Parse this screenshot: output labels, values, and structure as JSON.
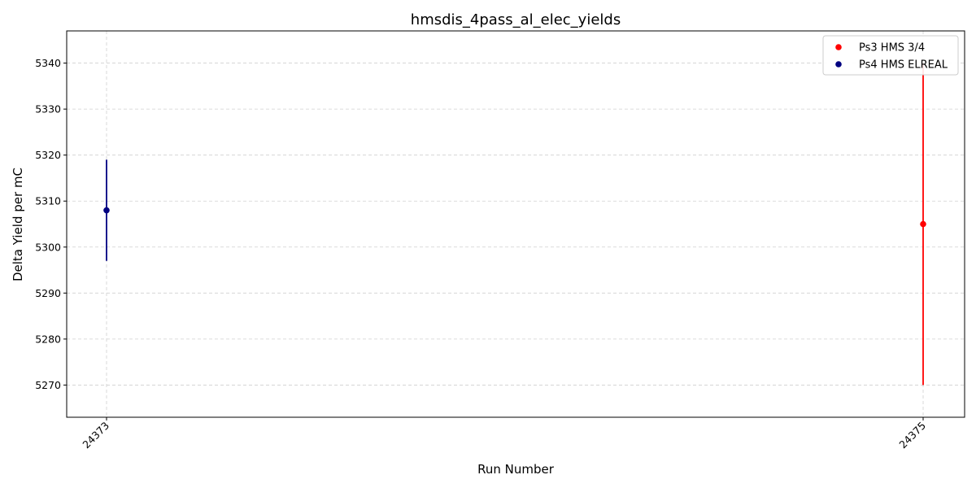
{
  "chart_data": {
    "type": "scatter",
    "title": "hmsdis_4pass_al_elec_yields",
    "xlabel": "Run Number",
    "ylabel": "Delta Yield per mC",
    "x_categories": [
      "24373",
      "24375"
    ],
    "ylim": [
      5263,
      5347
    ],
    "yticks": [
      5270,
      5280,
      5290,
      5300,
      5310,
      5320,
      5330,
      5340
    ],
    "grid": true,
    "legend_position": "top-right",
    "series": [
      {
        "name": "Ps3 HMS 3/4",
        "color": "#ff0000",
        "points": [
          {
            "x": "24375",
            "y": 5305,
            "err": 35
          }
        ]
      },
      {
        "name": "Ps4 HMS ELREAL",
        "color": "#000080",
        "points": [
          {
            "x": "24373",
            "y": 5308,
            "err": 11
          }
        ]
      }
    ]
  }
}
